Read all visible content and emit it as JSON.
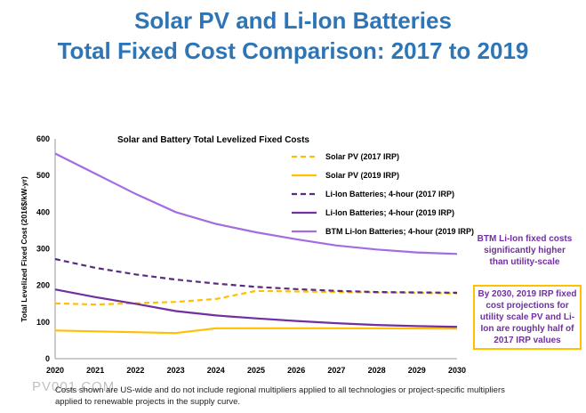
{
  "header": {
    "title_line1": "Solar PV and Li-Ion Batteries",
    "title_line2": "Total Fixed Cost Comparison: 2017 to 2019"
  },
  "chart_data": {
    "type": "line",
    "title": "Solar and Battery Total Levelized Fixed Costs",
    "xlabel": "",
    "ylabel": "Total Levelized Fixed Cost (2016$/kW-yr)",
    "x": [
      2020,
      2021,
      2022,
      2023,
      2024,
      2025,
      2026,
      2027,
      2028,
      2029,
      2030
    ],
    "x_tick_labels": [
      "2020",
      "2021",
      "2022",
      "2023",
      "2024",
      "2025",
      "2026",
      "2027",
      "2028",
      "2029",
      "2030"
    ],
    "ylim": [
      0,
      600
    ],
    "y_ticks": [
      0,
      100,
      200,
      300,
      400,
      500,
      600
    ],
    "grid": false,
    "legend_position": "top-right",
    "series": [
      {
        "name": "Solar PV (2017 IRP)",
        "color": "#ffc000",
        "dash": "dashed",
        "values": [
          151,
          148,
          null,
          155,
          163,
          185,
          null,
          182,
          null,
          null,
          178
        ]
      },
      {
        "name": "Solar PV (2019 IRP)",
        "color": "#ffc000",
        "dash": "solid",
        "values": [
          77,
          null,
          null,
          70,
          83,
          83,
          null,
          83,
          null,
          null,
          82
        ]
      },
      {
        "name": "Li-Ion Batteries; 4-hour (2017 IRP)",
        "color": "#5b2b7f",
        "dash": "dashed",
        "values": [
          272,
          248,
          230,
          216,
          205,
          196,
          190,
          185,
          182,
          181,
          180
        ]
      },
      {
        "name": "Li-Ion Batteries; 4-hour (2019 IRP)",
        "color": "#7030a0",
        "dash": "solid",
        "values": [
          189,
          168,
          150,
          130,
          118,
          110,
          103,
          97,
          92,
          89,
          87
        ]
      },
      {
        "name": "BTM Li-Ion Batteries; 4-hour (2019 IRP)",
        "color": "#a36ce0",
        "dash": "solid",
        "values": [
          560,
          505,
          450,
          400,
          368,
          345,
          326,
          309,
          298,
          290,
          286
        ]
      }
    ]
  },
  "annotations": {
    "btm_note": "BTM Li-Ion fixed costs significantly higher than utility-scale",
    "irp_note": "By 2030, 2019 IRP fixed cost projections for utility scale PV and Li-Ion are roughly half of 2017 IRP values"
  },
  "footnote": "Costs shown are US-wide and do not include regional multipliers applied to all technologies or project-specific multipliers applied to renewable projects in the supply curve.",
  "watermark": "PV001.COM"
}
